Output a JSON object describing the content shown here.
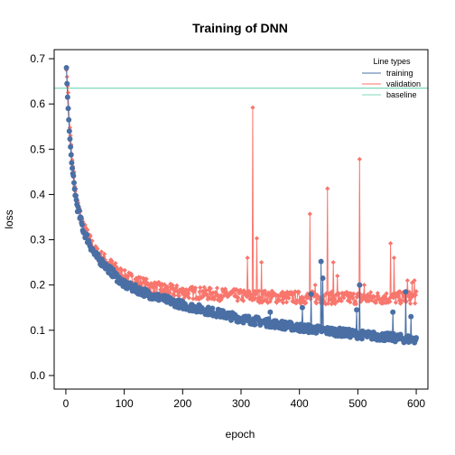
{
  "chart_data": {
    "type": "scatter",
    "title": "Training of DNN",
    "xlabel": "epoch",
    "ylabel": "loss",
    "xlim": [
      -20,
      620
    ],
    "ylim": [
      -0.03,
      0.72
    ],
    "x_ticks": [
      0,
      100,
      200,
      300,
      400,
      500,
      600
    ],
    "x_tick_labels": [
      "0",
      "100",
      "200",
      "300",
      "400",
      "500",
      "600"
    ],
    "y_ticks": [
      0.0,
      0.1,
      0.2,
      0.3,
      0.4,
      0.5,
      0.6,
      0.7
    ],
    "y_tick_labels": [
      "0.0",
      "0.1",
      "0.2",
      "0.3",
      "0.4",
      "0.5",
      "0.6",
      "0.7"
    ],
    "legend": {
      "title": "Line types",
      "placement": "top-right",
      "entries": [
        {
          "label": "training",
          "color": "#4a6fa5"
        },
        {
          "label": "validation",
          "color": "#f8766d"
        },
        {
          "label": "baseline",
          "color": "#7fd9bf"
        }
      ]
    },
    "baseline": 0.635,
    "epochs": 600,
    "series": [
      {
        "name": "training",
        "color": "#4a6fa5",
        "marker": "circle",
        "key_points": [
          [
            1,
            0.68
          ],
          [
            2,
            0.645
          ],
          [
            3,
            0.615
          ],
          [
            4,
            0.59
          ],
          [
            5,
            0.565
          ],
          [
            6,
            0.54
          ],
          [
            8,
            0.505
          ],
          [
            10,
            0.47
          ],
          [
            15,
            0.41
          ],
          [
            20,
            0.37
          ],
          [
            30,
            0.32
          ],
          [
            50,
            0.265
          ],
          [
            100,
            0.2
          ],
          [
            150,
            0.175
          ],
          [
            200,
            0.155
          ],
          [
            300,
            0.125
          ],
          [
            400,
            0.105
          ],
          [
            500,
            0.09
          ],
          [
            600,
            0.078
          ]
        ],
        "spikes": [
          [
            350,
            0.14
          ],
          [
            405,
            0.15
          ],
          [
            420,
            0.18
          ],
          [
            437,
            0.252
          ],
          [
            440,
            0.215
          ],
          [
            498,
            0.145
          ],
          [
            503,
            0.2
          ],
          [
            560,
            0.14
          ],
          [
            582,
            0.185
          ],
          [
            591,
            0.13
          ]
        ]
      },
      {
        "name": "validation",
        "color": "#f8766d",
        "marker": "diamond",
        "key_points": [
          [
            1,
            0.675
          ],
          [
            2,
            0.66
          ],
          [
            3,
            0.64
          ],
          [
            4,
            0.625
          ],
          [
            5,
            0.59
          ],
          [
            6,
            0.565
          ],
          [
            8,
            0.53
          ],
          [
            10,
            0.49
          ],
          [
            15,
            0.42
          ],
          [
            20,
            0.375
          ],
          [
            30,
            0.325
          ],
          [
            50,
            0.27
          ],
          [
            100,
            0.215
          ],
          [
            150,
            0.19
          ],
          [
            200,
            0.18
          ],
          [
            300,
            0.172
          ],
          [
            400,
            0.168
          ],
          [
            500,
            0.167
          ],
          [
            600,
            0.168
          ]
        ],
        "spikes": [
          [
            311,
            0.26
          ],
          [
            320,
            0.592
          ],
          [
            327,
            0.303
          ],
          [
            335,
            0.25
          ],
          [
            418,
            0.357
          ],
          [
            427,
            0.2
          ],
          [
            448,
            0.413
          ],
          [
            458,
            0.25
          ],
          [
            465,
            0.22
          ],
          [
            503,
            0.478
          ],
          [
            511,
            0.2
          ],
          [
            556,
            0.292
          ],
          [
            562,
            0.26
          ],
          [
            585,
            0.21
          ],
          [
            593,
            0.205
          ],
          [
            597,
            0.21
          ]
        ]
      }
    ]
  }
}
